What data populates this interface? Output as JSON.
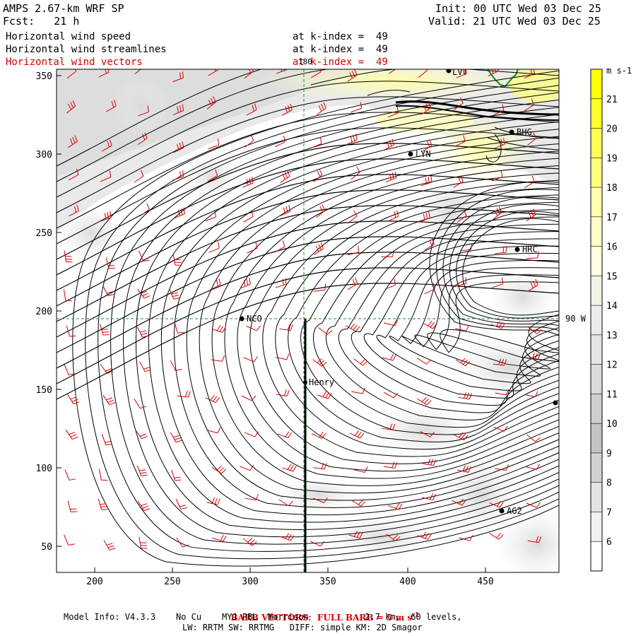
{
  "header": {
    "title": "AMPS 2.67-km WRF SP",
    "forecast": "Fcst:   21 h",
    "init": "Init: 00 UTC Wed 03 Dec 25",
    "valid": "Valid: 21 UTC Wed 03 Dec 25",
    "fields": [
      {
        "name": "Horizontal wind speed",
        "level": "at k-index =  49",
        "color": "#000000"
      },
      {
        "name": "Horizontal wind streamlines",
        "level": "at k-index =  49",
        "color": "#000000"
      },
      {
        "name": "Horizontal wind vectors",
        "level": "at k-index =  49",
        "color": "#d40000"
      }
    ]
  },
  "map": {
    "x_ticks": [
      "200",
      "250",
      "300",
      "350",
      "400",
      "450"
    ],
    "y_ticks": [
      "350",
      "300",
      "250",
      "200",
      "150",
      "100",
      "50"
    ],
    "meridian_label": "180",
    "parallel_label": "90 W",
    "section_label": "Henry",
    "stations": [
      "LVT",
      "BHG",
      "LYN",
      "HRC",
      "NCO",
      "Henry",
      "AG2"
    ]
  },
  "colorbar": {
    "units": "m s-1",
    "levels": [
      "21",
      "20",
      "19",
      "18",
      "17",
      "16",
      "15",
      "14",
      "13",
      "12",
      "11",
      "10",
      "9",
      "8",
      "7",
      "6"
    ],
    "colors": [
      "#ffff00",
      "#ffff2a",
      "#ffff55",
      "#ffff80",
      "#ffffaa",
      "#ffffc8",
      "#ffffdf",
      "#f2f2e6",
      "#ececec",
      "#e4e4e4",
      "#dadada",
      "#cfcfcf",
      "#c4c4c4",
      "#d2d2d2",
      "#e3e3e3",
      "#f1f1f1",
      "#ffffff"
    ]
  },
  "footer": {
    "barb_note": "BARB VECTORS:  FULL BARB = 5 m s",
    "barb_sup": "-1",
    "model_info": "Model Info: V4.3.3    No Cu    MYJ PBL  Morrison           2.7 km,  60 levels,",
    "physics": "LW: RRTM SW: RRTMG   DIFF: simple KM: 2D Smagor"
  }
}
